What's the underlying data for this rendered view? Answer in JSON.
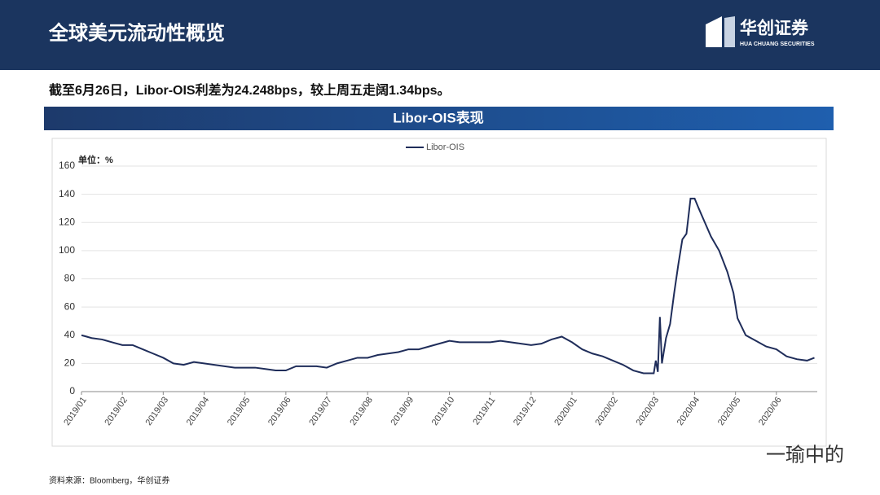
{
  "header": {
    "title": "全球美元流动性概览",
    "logo_cn": "华创证券",
    "logo_en": "HUA CHUANG SECURITIES"
  },
  "summary": "截至6月26日，Libor-OIS利差为24.248bps，较上周五走阔1.34bps。",
  "section_title": "Libor-OIS表现",
  "chart_data": {
    "type": "line",
    "y_unit_label": "单位：%",
    "x": [
      0,
      0.25,
      0.5,
      0.75,
      1,
      1.25,
      1.5,
      1.75,
      2,
      2.25,
      2.5,
      2.75,
      3,
      3.25,
      3.5,
      3.75,
      4,
      4.25,
      4.5,
      4.75,
      5,
      5.25,
      5.5,
      5.75,
      6,
      6.25,
      6.5,
      6.75,
      7,
      7.25,
      7.5,
      7.75,
      8,
      8.25,
      8.5,
      8.75,
      9,
      9.25,
      9.5,
      9.75,
      10,
      10.25,
      10.5,
      10.75,
      11,
      11.25,
      11.5,
      11.75,
      12,
      12.25,
      12.5,
      12.75,
      13,
      13.25,
      13.5,
      13.75,
      13.9,
      14,
      14.05,
      14.1,
      14.15,
      14.2,
      14.3,
      14.4,
      14.5,
      14.6,
      14.7,
      14.8,
      14.9,
      15,
      15.1,
      15.25,
      15.4,
      15.6,
      15.8,
      15.95,
      16.05,
      16.25,
      16.5,
      16.75,
      17,
      17.25,
      17.5,
      17.75,
      17.93
    ],
    "series": [
      {
        "name": "Libor-OIS",
        "color": "#1f2d5a",
        "values": [
          40,
          38,
          37,
          35,
          33,
          33,
          30,
          27,
          24,
          20,
          19,
          21,
          20,
          19,
          18,
          17,
          17,
          17,
          16,
          15,
          15,
          18,
          18,
          18,
          17,
          20,
          22,
          24,
          24,
          26,
          27,
          28,
          30,
          30,
          32,
          34,
          36,
          35,
          35,
          35,
          35,
          36,
          35,
          34,
          33,
          34,
          37,
          39,
          35,
          30,
          27,
          25,
          22,
          19,
          15,
          13,
          13,
          13,
          22,
          14,
          53,
          20,
          38,
          48,
          70,
          90,
          108,
          112,
          137,
          137,
          130,
          120,
          110,
          100,
          85,
          70,
          52,
          40,
          36,
          32,
          30,
          25,
          23,
          22,
          24
        ]
      }
    ],
    "xlim": [
      0,
      18
    ],
    "xticks": [
      {
        "value": 0,
        "label": "2019/01"
      },
      {
        "value": 1,
        "label": "2019/02"
      },
      {
        "value": 2,
        "label": "2019/03"
      },
      {
        "value": 3,
        "label": "2019/04"
      },
      {
        "value": 4,
        "label": "2019/05"
      },
      {
        "value": 5,
        "label": "2019/06"
      },
      {
        "value": 6,
        "label": "2019/07"
      },
      {
        "value": 7,
        "label": "2019/08"
      },
      {
        "value": 8,
        "label": "2019/09"
      },
      {
        "value": 9,
        "label": "2019/10"
      },
      {
        "value": 10,
        "label": "2019/11"
      },
      {
        "value": 11,
        "label": "2019/12"
      },
      {
        "value": 12,
        "label": "2020/01"
      },
      {
        "value": 13,
        "label": "2020/02"
      },
      {
        "value": 14,
        "label": "2020/03"
      },
      {
        "value": 15,
        "label": "2020/04"
      },
      {
        "value": 16,
        "label": "2020/05"
      },
      {
        "value": 17,
        "label": "2020/06"
      }
    ],
    "ylim": [
      0,
      160
    ],
    "yticks": [
      0,
      20,
      40,
      60,
      80,
      100,
      120,
      140,
      160
    ],
    "grid": true
  },
  "source": "资料来源：Bloomberg，华创证券",
  "watermark": "一瑜中的"
}
